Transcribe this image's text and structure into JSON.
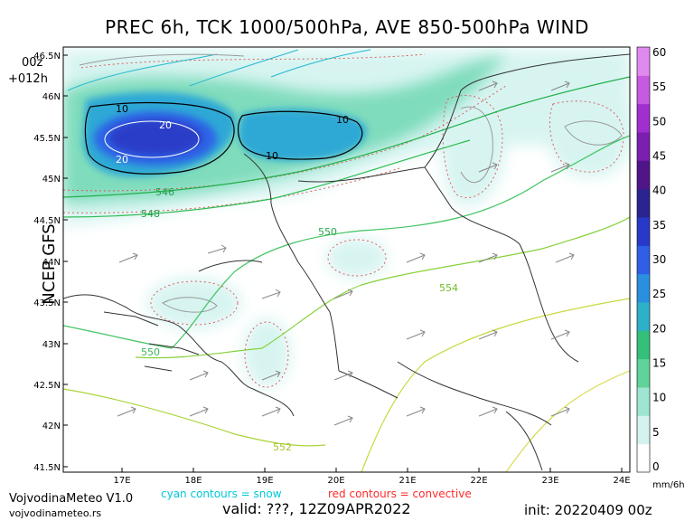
{
  "title": "PREC 6h, TCK 1000/500hPa, AVE 850-500hPa WIND",
  "model_label": "NCEP GFS",
  "run": {
    "hour": "00z",
    "forecast": "+012h"
  },
  "credits": {
    "name": "VojvodinaMeteo V1.0",
    "url": "vojvodinameteo.rs"
  },
  "notes": {
    "snow": "cyan contours = snow",
    "convective": "red contours = convective"
  },
  "valid": "valid: ???, 12Z09APR2022",
  "init": "init: 20220409 00z",
  "colorbar": {
    "unit": "mm/6h",
    "ticks": [
      "0",
      "5",
      "10",
      "15",
      "20",
      "25",
      "30",
      "35",
      "40",
      "45",
      "50",
      "55",
      "60"
    ],
    "colors": [
      "#ffffff",
      "#d4f3ef",
      "#9fe6d2",
      "#5fd39a",
      "#35c07a",
      "#2db0c9",
      "#2b8fe0",
      "#2f5fe8",
      "#2838c8",
      "#2a2390",
      "#51158a",
      "#7a1fb0",
      "#a12fd0",
      "#c65ae0",
      "#e08af0"
    ]
  },
  "axes": {
    "lon_ticks": [
      "17E",
      "18E",
      "19E",
      "20E",
      "21E",
      "22E",
      "23E",
      "24E"
    ],
    "lat_ticks": [
      "46.5N",
      "46N",
      "45.5N",
      "45N",
      "44.5N",
      "44N",
      "43.5N",
      "43N",
      "42.5N",
      "42N",
      "41.5N"
    ]
  },
  "contour_labels": [
    "10",
    "20",
    "20",
    "10",
    "10",
    "546",
    "548",
    "550",
    "554",
    "550",
    "552"
  ]
}
